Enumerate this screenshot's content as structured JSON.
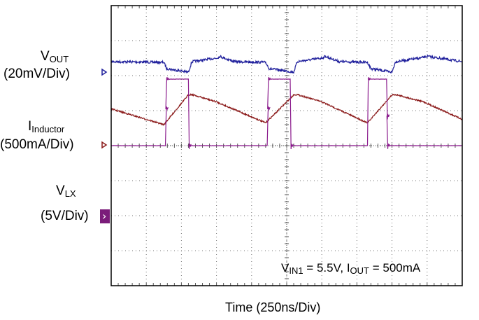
{
  "chart_data": {
    "type": "line",
    "title": "",
    "xlabel": "Time (250ns/Div)",
    "ylabel": "",
    "x_divisions": 10,
    "y_divisions": 8,
    "grid": true,
    "annotation": {
      "v": "V",
      "v_sub": "IN1",
      "v_text": " = 5.5V, ",
      "i": "I",
      "i_sub": "OUT",
      "i_text": " = 500mA"
    },
    "series": [
      {
        "name_main": "V",
        "name_sub": "OUT",
        "scale": "(20mV/Div)",
        "color": "#1f1f9c",
        "baseline_div": 1.6,
        "x_div": [
          0,
          1.5,
          1.58,
          2.2,
          2.3,
          3.0,
          3.1,
          3.5,
          4.4,
          4.5,
          5.2,
          5.3,
          6.0,
          6.1,
          6.5,
          7.3,
          7.4,
          8.0,
          8.1,
          8.8,
          9.0,
          10
        ],
        "y_div": [
          1.6,
          1.62,
          1.8,
          1.9,
          1.6,
          1.5,
          1.45,
          1.6,
          1.62,
          1.8,
          1.9,
          1.6,
          1.5,
          1.45,
          1.6,
          1.62,
          1.8,
          1.9,
          1.6,
          1.5,
          1.45,
          1.6
        ]
      },
      {
        "name_main": "I",
        "name_sub": "Inductor",
        "scale": "(500mA/Div)",
        "color": "#8b1a1a",
        "baseline_div": 2.9,
        "x_div": [
          0,
          1.5,
          2.2,
          2.3,
          3.0,
          4.4,
          5.2,
          5.3,
          6.0,
          7.3,
          8.0,
          8.1,
          8.9,
          10
        ],
        "y_div": [
          2.95,
          3.4,
          2.55,
          2.54,
          2.75,
          3.35,
          2.55,
          2.54,
          2.75,
          3.35,
          2.55,
          2.54,
          2.75,
          3.25
        ]
      },
      {
        "name_main": "V",
        "name_sub": "LX",
        "scale": "(5V/Div)",
        "color": "#8a1a8c",
        "baseline_div": 4.0,
        "x_div": [
          0,
          1.55,
          1.56,
          2.2,
          2.21,
          4.45,
          4.46,
          5.1,
          5.11,
          7.3,
          7.31,
          7.85,
          7.86,
          10
        ],
        "y_div": [
          4.0,
          4.0,
          2.1,
          2.1,
          4.0,
          4.0,
          2.1,
          2.1,
          4.0,
          4.0,
          2.1,
          2.1,
          4.0,
          4.0
        ]
      }
    ]
  }
}
